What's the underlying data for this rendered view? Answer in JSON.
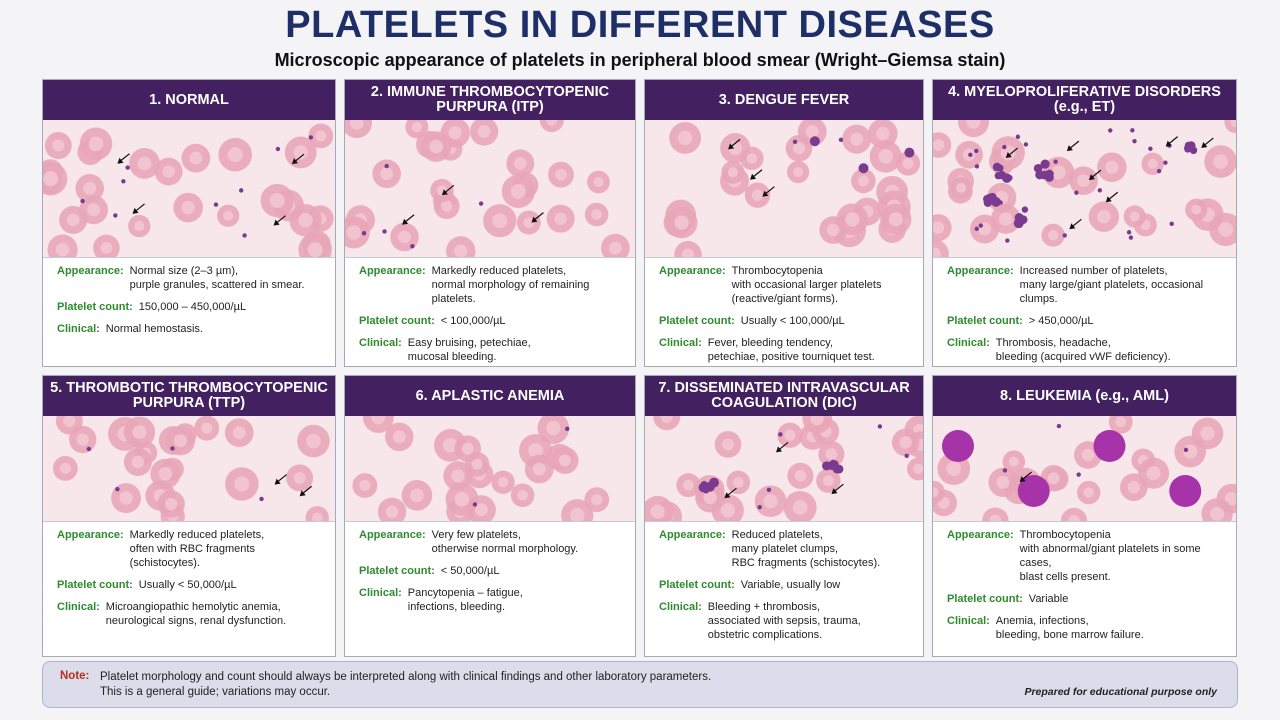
{
  "title": "PLATELETS IN DIFFERENT DISEASES",
  "subtitle": "Microscopic appearance of platelets in peripheral blood smear (Wright–Giemsa stain)",
  "labels": {
    "appearance": "Appearance:",
    "count": "Platelet count:",
    "clinical": "Clinical:"
  },
  "colors": {
    "header": "#43205f",
    "title": "#1d2f66",
    "label": "#2e8b2e",
    "rbc": "#e8a6b8",
    "platelet": "#7a3a8f",
    "blast": "#a634a8",
    "note_label": "#b5301f"
  },
  "cards": [
    {
      "title": "1. NORMAL",
      "appearance": [
        "Normal size (2–3 µm),",
        "purple granules, scattered in smear."
      ],
      "count": "150,000 – 450,000/µL",
      "clinical": [
        "Normal hemostasis."
      ]
    },
    {
      "title": "2. IMMUNE THROMBOCYTOPENIC PURPURA (ITP)",
      "appearance": [
        "Markedly reduced platelets,",
        "normal morphology of remaining platelets."
      ],
      "count": "< 100,000/µL",
      "clinical": [
        "Easy bruising, petechiae,",
        "mucosal bleeding."
      ]
    },
    {
      "title": "3. DENGUE FEVER",
      "appearance": [
        "Thrombocytopenia",
        "with occasional larger platelets",
        "(reactive/giant forms)."
      ],
      "count": "Usually < 100,000/µL",
      "clinical": [
        "Fever, bleeding tendency,",
        "petechiae, positive tourniquet test."
      ]
    },
    {
      "title": "4. MYELOPROLIFERATIVE DISORDERS (e.g., ET)",
      "appearance": [
        "Increased number of platelets,",
        "many large/giant platelets, occasional clumps."
      ],
      "count": "> 450,000/µL",
      "clinical": [
        "Thrombosis, headache,",
        "bleeding (acquired vWF deficiency)."
      ]
    },
    {
      "title": "5. THROMBOTIC THROMBOCYTOPENIC PURPURA (TTP)",
      "appearance": [
        "Markedly reduced platelets,",
        "often with RBC fragments (schistocytes)."
      ],
      "count": "Usually < 50,000/µL",
      "clinical": [
        "Microangiopathic hemolytic anemia,",
        "neurological signs, renal dysfunction."
      ]
    },
    {
      "title": "6. APLASTIC ANEMIA",
      "appearance": [
        "Very few platelets,",
        "otherwise normal morphology."
      ],
      "count": "< 50,000/µL",
      "clinical": [
        "Pancytopenia – fatigue,",
        "infections, bleeding."
      ]
    },
    {
      "title": "7. DISSEMINATED INTRAVASCULAR COAGULATION (DIC)",
      "appearance": [
        "Reduced platelets,",
        "many platelet clumps,",
        "RBC fragments (schistocytes)."
      ],
      "count": "Variable, usually low",
      "clinical": [
        "Bleeding + thrombosis,",
        "associated with sepsis, trauma,",
        "obstetric complications."
      ]
    },
    {
      "title": "8. LEUKEMIA (e.g., AML)",
      "appearance": [
        "Thrombocytopenia",
        "with abnormal/giant platelets in some cases,",
        "blast cells present."
      ],
      "count": "Variable",
      "clinical": [
        "Anemia, infections,",
        "bleeding, bone marrow failure."
      ]
    }
  ],
  "note": {
    "label": "Note:",
    "lines": [
      "Platelet morphology and count should always be interpreted along with clinical findings and other laboratory parameters.",
      "This is a general guide; variations may occur."
    ],
    "right": "Prepared for educational purpose only"
  }
}
